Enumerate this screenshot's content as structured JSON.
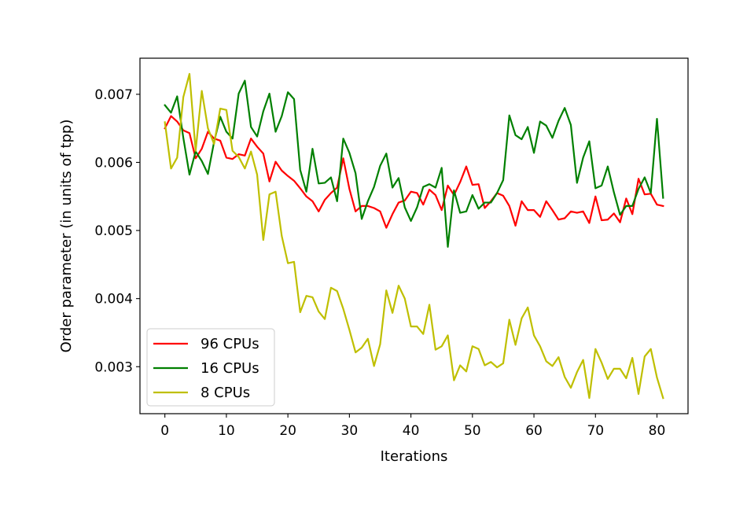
{
  "chart_data": {
    "type": "line",
    "title": "",
    "xlabel": "Iterations",
    "ylabel": "Order parameter (in units of tpp)",
    "xlim": [
      -4.05,
      85.05
    ],
    "ylim": [
      0.00231,
      0.00753
    ],
    "xticks": [
      0,
      10,
      20,
      30,
      40,
      50,
      60,
      70,
      80
    ],
    "xtick_labels": [
      "0",
      "10",
      "20",
      "30",
      "40",
      "50",
      "60",
      "70",
      "80"
    ],
    "yticks": [
      0.003,
      0.004,
      0.005,
      0.006,
      0.007
    ],
    "ytick_labels": [
      "0.003",
      "0.004",
      "0.005",
      "0.006",
      "0.007"
    ],
    "grid": false,
    "legend_position": "lower-left",
    "x": [
      0,
      1,
      2,
      3,
      4,
      5,
      6,
      7,
      8,
      9,
      10,
      11,
      12,
      13,
      14,
      15,
      16,
      17,
      18,
      19,
      20,
      21,
      22,
      23,
      24,
      25,
      26,
      27,
      28,
      29,
      30,
      31,
      32,
      33,
      34,
      35,
      36,
      37,
      38,
      39,
      40,
      41,
      42,
      43,
      44,
      45,
      46,
      47,
      48,
      49,
      50,
      51,
      52,
      53,
      54,
      55,
      56,
      57,
      58,
      59,
      60,
      61,
      62,
      63,
      64,
      65,
      66,
      67,
      68,
      69,
      70,
      71,
      72,
      73,
      74,
      75,
      76,
      77,
      78,
      79,
      80,
      81
    ],
    "series": [
      {
        "name": "96 CPUs",
        "color": "#ff0000",
        "values": [
          0.0065,
          0.00668,
          0.0066,
          0.00647,
          0.00643,
          0.00606,
          0.0062,
          0.00645,
          0.00635,
          0.00632,
          0.00607,
          0.00605,
          0.00612,
          0.0061,
          0.00635,
          0.00623,
          0.00613,
          0.00572,
          0.00601,
          0.00588,
          0.0058,
          0.00573,
          0.00562,
          0.0055,
          0.00543,
          0.00528,
          0.00545,
          0.00555,
          0.00563,
          0.00606,
          0.00561,
          0.00528,
          0.00536,
          0.00536,
          0.00533,
          0.00528,
          0.00504,
          0.00524,
          0.00541,
          0.00544,
          0.00557,
          0.00555,
          0.00538,
          0.0056,
          0.00552,
          0.0053,
          0.00566,
          0.00552,
          0.00571,
          0.00594,
          0.00567,
          0.00568,
          0.00533,
          0.00543,
          0.00555,
          0.00551,
          0.00536,
          0.00507,
          0.00543,
          0.0053,
          0.0053,
          0.0052,
          0.00543,
          0.0053,
          0.00516,
          0.00518,
          0.00528,
          0.00526,
          0.00528,
          0.00511,
          0.0055,
          0.00515,
          0.00516,
          0.00525,
          0.00512,
          0.00547,
          0.00524,
          0.00576,
          0.00553,
          0.00554,
          0.00538,
          0.00536
        ]
      },
      {
        "name": "16 CPUs",
        "color": "#008000",
        "values": [
          0.00684,
          0.00673,
          0.00697,
          0.00636,
          0.00582,
          0.00616,
          0.00602,
          0.00583,
          0.0063,
          0.00667,
          0.00645,
          0.00635,
          0.00701,
          0.0072,
          0.00652,
          0.00638,
          0.00675,
          0.00701,
          0.00645,
          0.00668,
          0.00703,
          0.00693,
          0.00589,
          0.00557,
          0.0062,
          0.00569,
          0.0057,
          0.00578,
          0.00543,
          0.00635,
          0.00614,
          0.00584,
          0.00517,
          0.00543,
          0.00564,
          0.00595,
          0.00613,
          0.00563,
          0.00577,
          0.00534,
          0.00514,
          0.00534,
          0.00564,
          0.00568,
          0.00563,
          0.00592,
          0.00476,
          0.00559,
          0.00526,
          0.00528,
          0.00552,
          0.00532,
          0.00541,
          0.00541,
          0.00555,
          0.00574,
          0.00669,
          0.0064,
          0.00634,
          0.00652,
          0.00614,
          0.0066,
          0.00654,
          0.00636,
          0.00661,
          0.0068,
          0.00655,
          0.0057,
          0.00607,
          0.00631,
          0.00562,
          0.00566,
          0.00594,
          0.00556,
          0.00523,
          0.00536,
          0.00536,
          0.00561,
          0.00578,
          0.00555,
          0.00664,
          0.00548
        ]
      },
      {
        "name": "8 CPUs",
        "color": "#bfbf00",
        "values": [
          0.00659,
          0.00591,
          0.00607,
          0.00696,
          0.0073,
          0.00617,
          0.00705,
          0.0065,
          0.00627,
          0.00679,
          0.00677,
          0.00617,
          0.00608,
          0.00591,
          0.00616,
          0.00582,
          0.00486,
          0.00553,
          0.00557,
          0.00492,
          0.00452,
          0.00454,
          0.0038,
          0.00404,
          0.00402,
          0.00381,
          0.0037,
          0.00416,
          0.00411,
          0.00385,
          0.00354,
          0.00321,
          0.00328,
          0.00341,
          0.00301,
          0.00333,
          0.00412,
          0.00379,
          0.00419,
          0.004,
          0.00359,
          0.00359,
          0.00348,
          0.00391,
          0.00325,
          0.0033,
          0.00346,
          0.0028,
          0.00302,
          0.00293,
          0.0033,
          0.00326,
          0.00302,
          0.00307,
          0.00299,
          0.00305,
          0.00369,
          0.00332,
          0.00371,
          0.00387,
          0.00346,
          0.0033,
          0.00308,
          0.00301,
          0.00314,
          0.00285,
          0.00269,
          0.00292,
          0.0031,
          0.00254,
          0.00326,
          0.00306,
          0.00282,
          0.00297,
          0.00297,
          0.00283,
          0.00313,
          0.0026,
          0.00315,
          0.00326,
          0.00284,
          0.00254
        ]
      }
    ]
  }
}
